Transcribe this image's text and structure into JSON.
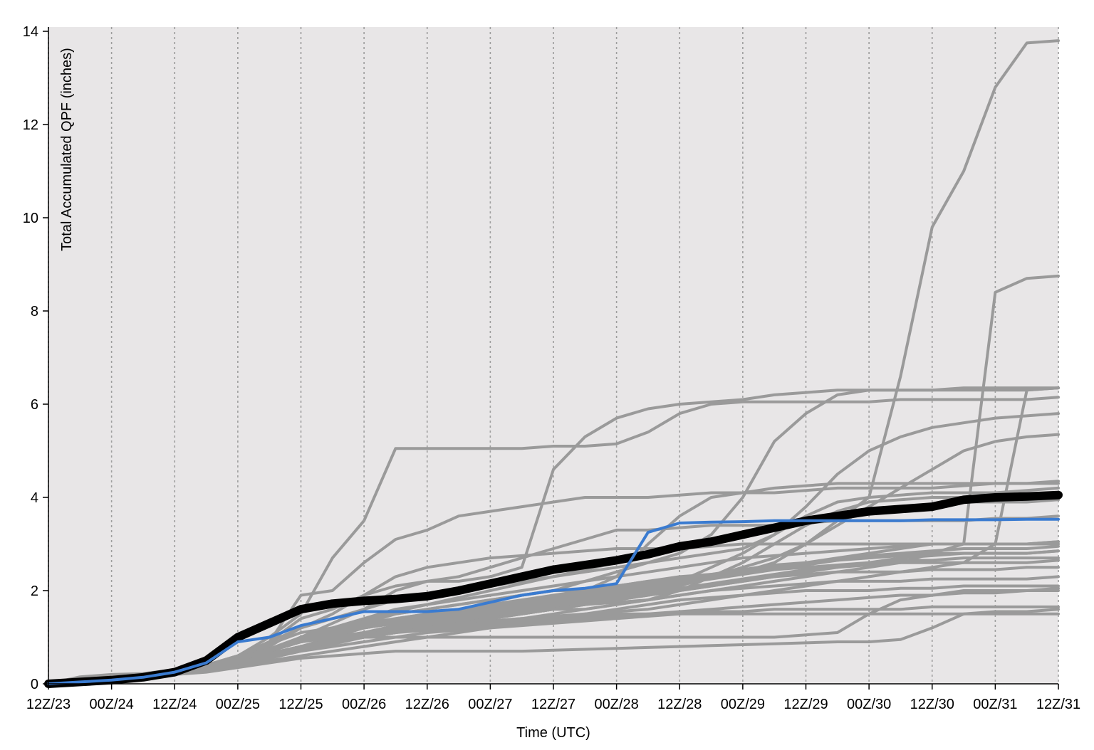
{
  "chart_data": {
    "type": "line",
    "xlabel": "Time (UTC)",
    "ylabel": "Total Accumulated QPF (inches)",
    "x_ticks": [
      "12Z/23",
      "00Z/24",
      "12Z/24",
      "00Z/25",
      "12Z/25",
      "00Z/26",
      "12Z/26",
      "00Z/27",
      "12Z/27",
      "00Z/28",
      "12Z/28",
      "00Z/29",
      "12Z/29",
      "00Z/30",
      "12Z/30",
      "00Z/31",
      "12Z/31"
    ],
    "x_units": "hours since first tick, 6-hourly steps",
    "y_ticks": [
      0,
      2,
      4,
      6,
      8,
      10,
      12,
      14
    ],
    "ylim": [
      0,
      14
    ],
    "xlim": [
      0,
      192
    ],
    "grid": "vertical dotted lines at each x tick",
    "background": "#e8e6e7",
    "member_color": "#9a9a9a",
    "mean_color": "#000000",
    "deterministic_color": "#3a7bd0",
    "x": [
      0,
      6,
      12,
      18,
      24,
      30,
      36,
      42,
      48,
      54,
      60,
      66,
      72,
      78,
      84,
      90,
      96,
      102,
      108,
      114,
      120,
      126,
      132,
      138,
      144,
      150,
      156,
      162,
      168,
      174,
      180,
      186,
      192
    ],
    "members": [
      [
        0,
        0.15,
        0.2,
        0.22,
        0.3,
        0.4,
        0.6,
        0.9,
        1.9,
        2.0,
        2.6,
        3.1,
        3.3,
        3.6,
        3.7,
        3.8,
        3.9,
        4.0,
        4.0,
        4.0,
        4.05,
        4.1,
        4.1,
        4.1,
        4.15,
        4.2,
        4.2,
        4.2,
        4.2,
        4.25,
        4.3,
        4.3,
        4.3
      ],
      [
        0,
        0.05,
        0.1,
        0.15,
        0.2,
        0.35,
        0.6,
        1.0,
        1.5,
        2.7,
        3.5,
        5.05,
        5.05,
        5.05,
        5.05,
        5.05,
        5.1,
        5.1,
        5.15,
        5.4,
        5.8,
        6.0,
        6.05,
        6.05,
        6.05,
        6.05,
        6.05,
        6.1,
        6.1,
        6.1,
        6.1,
        6.1,
        6.15
      ],
      [
        0,
        0.05,
        0.1,
        0.15,
        0.25,
        0.4,
        0.6,
        0.9,
        1.4,
        1.6,
        1.9,
        2.1,
        2.2,
        2.2,
        2.3,
        2.5,
        4.6,
        5.3,
        5.7,
        5.9,
        6.0,
        6.05,
        6.1,
        6.2,
        6.25,
        6.3,
        6.3,
        6.3,
        6.3,
        6.35,
        6.35,
        6.35,
        6.35
      ],
      [
        0,
        0.05,
        0.1,
        0.15,
        0.25,
        0.4,
        0.55,
        0.8,
        1.2,
        1.4,
        1.6,
        1.8,
        1.9,
        2.0,
        2.1,
        2.2,
        2.3,
        2.4,
        2.5,
        2.6,
        2.7,
        2.8,
        2.9,
        3.2,
        3.8,
        4.5,
        5.0,
        5.3,
        5.5,
        5.6,
        5.7,
        5.75,
        5.8
      ],
      [
        0,
        0.05,
        0.1,
        0.15,
        0.2,
        0.3,
        0.45,
        0.7,
        1.0,
        1.2,
        1.4,
        1.5,
        1.6,
        1.7,
        1.8,
        1.9,
        2.0,
        2.2,
        2.4,
        2.6,
        2.8,
        3.2,
        4.0,
        5.2,
        5.8,
        6.2,
        6.3,
        6.3,
        6.3,
        6.3,
        6.3,
        6.3,
        6.35
      ],
      [
        0,
        0.05,
        0.1,
        0.15,
        0.25,
        0.35,
        0.5,
        0.7,
        0.9,
        1.1,
        1.3,
        1.5,
        1.6,
        1.7,
        1.8,
        1.9,
        2.0,
        2.0,
        2.1,
        2.2,
        2.2,
        2.3,
        2.4,
        2.6,
        3.0,
        3.4,
        3.8,
        4.2,
        4.6,
        5.0,
        5.2,
        5.3,
        5.35
      ],
      [
        0,
        0.05,
        0.1,
        0.15,
        0.2,
        0.3,
        0.4,
        0.6,
        0.8,
        1.0,
        1.2,
        1.3,
        1.4,
        1.5,
        1.6,
        1.7,
        1.8,
        2.0,
        2.3,
        3.0,
        3.6,
        4.0,
        4.1,
        4.2,
        4.25,
        4.3,
        4.3,
        4.3,
        4.3,
        4.3,
        4.3,
        4.3,
        4.35
      ],
      [
        0,
        0.05,
        0.1,
        0.15,
        0.25,
        0.4,
        0.6,
        0.85,
        1.1,
        1.2,
        1.3,
        1.4,
        1.5,
        1.5,
        1.55,
        1.6,
        1.7,
        1.8,
        1.9,
        2.0,
        2.2,
        2.5,
        2.8,
        3.2,
        3.6,
        3.9,
        4.0,
        4.05,
        4.1,
        4.1,
        4.1,
        4.15,
        4.2
      ],
      [
        0,
        0.05,
        0.1,
        0.15,
        0.2,
        0.3,
        0.5,
        0.7,
        1.0,
        1.1,
        1.2,
        1.3,
        1.4,
        1.4,
        1.5,
        1.5,
        1.6,
        1.6,
        1.7,
        1.8,
        2.0,
        2.3,
        2.6,
        3.0,
        3.4,
        3.7,
        3.9,
        3.95,
        4.0,
        4.0,
        4.0,
        4.0,
        4.05
      ],
      [
        0,
        0.05,
        0.1,
        0.15,
        0.25,
        0.35,
        0.5,
        0.65,
        0.8,
        0.95,
        1.05,
        1.15,
        1.2,
        1.3,
        1.35,
        1.4,
        1.45,
        1.5,
        1.55,
        1.6,
        1.7,
        1.8,
        1.9,
        2.0,
        2.1,
        2.2,
        2.3,
        2.4,
        2.5,
        2.6,
        3.0,
        6.3,
        6.35
      ],
      [
        0,
        0.05,
        0.1,
        0.15,
        0.25,
        0.35,
        0.5,
        0.7,
        0.9,
        1.0,
        1.1,
        1.2,
        1.25,
        1.3,
        1.35,
        1.4,
        1.5,
        1.6,
        1.7,
        1.8,
        1.9,
        2.0,
        2.1,
        2.2,
        2.3,
        2.4,
        2.5,
        2.6,
        2.8,
        3.0,
        8.4,
        8.7,
        8.75
      ],
      [
        0,
        0.05,
        0.1,
        0.15,
        0.25,
        0.35,
        0.5,
        0.7,
        0.9,
        1.0,
        1.1,
        1.2,
        1.3,
        1.4,
        1.5,
        1.6,
        1.7,
        1.8,
        1.9,
        2.0,
        2.1,
        2.3,
        2.5,
        2.7,
        3.0,
        3.5,
        4.0,
        6.6,
        9.8,
        11.0,
        12.8,
        13.75,
        13.8
      ],
      [
        0,
        0.05,
        0.1,
        0.15,
        0.25,
        0.4,
        0.55,
        0.75,
        0.95,
        1.1,
        1.2,
        1.3,
        1.4,
        1.5,
        1.6,
        1.7,
        1.8,
        1.9,
        2.0,
        2.1,
        2.2,
        2.3,
        2.4,
        2.5,
        2.6,
        2.7,
        2.8,
        2.9,
        3.0,
        3.0,
        3.0,
        3.0,
        3.05
      ],
      [
        0,
        0.05,
        0.1,
        0.15,
        0.2,
        0.3,
        0.45,
        0.6,
        0.8,
        0.9,
        1.0,
        1.1,
        1.2,
        1.3,
        1.4,
        1.5,
        1.6,
        1.7,
        1.8,
        1.9,
        2.0,
        2.1,
        2.2,
        2.3,
        2.4,
        2.5,
        2.6,
        2.7,
        2.75,
        2.8,
        2.8,
        2.8,
        2.85
      ],
      [
        0,
        0.05,
        0.1,
        0.15,
        0.25,
        0.35,
        0.5,
        0.65,
        0.8,
        0.95,
        1.05,
        1.15,
        1.25,
        1.35,
        1.45,
        1.55,
        1.65,
        1.75,
        1.85,
        1.95,
        2.05,
        2.15,
        2.25,
        2.35,
        2.45,
        2.5,
        2.55,
        2.6,
        2.6,
        2.6,
        2.6,
        2.6,
        2.65
      ],
      [
        0,
        0.05,
        0.1,
        0.15,
        0.2,
        0.3,
        0.4,
        0.55,
        0.7,
        0.85,
        1.0,
        1.1,
        1.2,
        1.3,
        1.4,
        1.5,
        1.6,
        1.7,
        1.8,
        1.9,
        2.0,
        2.1,
        2.2,
        2.3,
        2.35,
        2.4,
        2.4,
        2.4,
        2.45,
        2.45,
        2.45,
        2.5,
        2.5
      ],
      [
        0,
        0.05,
        0.1,
        0.15,
        0.25,
        0.35,
        0.45,
        0.6,
        0.75,
        0.9,
        1.0,
        1.1,
        1.2,
        1.3,
        1.4,
        1.5,
        1.6,
        1.7,
        1.75,
        1.8,
        1.9,
        2.0,
        2.05,
        2.1,
        2.15,
        2.2,
        2.2,
        2.2,
        2.25,
        2.25,
        2.25,
        2.25,
        2.3
      ],
      [
        0,
        0.05,
        0.1,
        0.15,
        0.2,
        0.3,
        0.4,
        0.5,
        0.6,
        0.7,
        0.8,
        0.9,
        1.0,
        1.1,
        1.2,
        1.3,
        1.4,
        1.5,
        1.6,
        1.7,
        1.8,
        1.85,
        1.9,
        1.95,
        2.0,
        2.0,
        2.0,
        2.05,
        2.05,
        2.1,
        2.1,
        2.1,
        2.1
      ],
      [
        0,
        0.05,
        0.1,
        0.15,
        0.25,
        0.35,
        0.5,
        0.65,
        0.8,
        0.9,
        1.0,
        1.1,
        1.15,
        1.2,
        1.25,
        1.3,
        1.35,
        1.4,
        1.45,
        1.5,
        1.55,
        1.6,
        1.65,
        1.7,
        1.75,
        1.8,
        1.85,
        1.9,
        1.9,
        1.95,
        1.95,
        2.0,
        2.0
      ],
      [
        0,
        0.05,
        0.1,
        0.15,
        0.2,
        0.3,
        0.4,
        0.55,
        0.7,
        0.8,
        0.9,
        1.0,
        1.1,
        1.15,
        1.2,
        1.25,
        1.3,
        1.35,
        1.4,
        1.45,
        1.5,
        1.55,
        1.55,
        1.6,
        1.6,
        1.6,
        1.6,
        1.6,
        1.65,
        1.65,
        1.65,
        1.65,
        1.65
      ],
      [
        0,
        0.05,
        0.1,
        0.15,
        0.2,
        0.25,
        0.35,
        0.45,
        0.55,
        0.6,
        0.65,
        0.7,
        0.7,
        0.7,
        0.7,
        0.7,
        0.72,
        0.74,
        0.76,
        0.78,
        0.8,
        0.82,
        0.84,
        0.86,
        0.88,
        0.9,
        0.9,
        0.95,
        1.2,
        1.5,
        1.55,
        1.55,
        1.6
      ],
      [
        0,
        0.05,
        0.1,
        0.15,
        0.25,
        0.35,
        0.5,
        0.65,
        0.8,
        0.9,
        1.0,
        1.0,
        1.0,
        1.0,
        1.0,
        1.0,
        1.0,
        1.0,
        1.0,
        1.0,
        1.0,
        1.0,
        1.0,
        1.0,
        1.05,
        1.1,
        1.5,
        1.8,
        1.9,
        2.0,
        2.0,
        2.0,
        2.05
      ],
      [
        0,
        0.05,
        0.1,
        0.15,
        0.2,
        0.3,
        0.45,
        0.6,
        0.75,
        0.9,
        1.0,
        1.1,
        1.2,
        1.25,
        1.3,
        1.35,
        1.4,
        1.45,
        1.5,
        1.5,
        1.5,
        1.5,
        1.5,
        1.5,
        1.5,
        1.5,
        1.5,
        1.5,
        1.5,
        1.5,
        1.5,
        1.5,
        1.5
      ],
      [
        0,
        0.05,
        0.1,
        0.15,
        0.25,
        0.35,
        0.5,
        0.7,
        1.0,
        1.3,
        1.6,
        2.0,
        2.2,
        2.3,
        2.5,
        2.7,
        2.9,
        3.1,
        3.3,
        3.3,
        3.35,
        3.4,
        3.4,
        3.4,
        3.45,
        3.5,
        3.5,
        3.5,
        3.5,
        3.5,
        3.55,
        3.55,
        3.6
      ],
      [
        0,
        0.05,
        0.1,
        0.15,
        0.25,
        0.35,
        0.55,
        0.75,
        1.0,
        1.2,
        1.4,
        1.6,
        1.7,
        1.8,
        1.9,
        2.0,
        2.1,
        2.2,
        2.3,
        2.4,
        2.5,
        2.6,
        2.7,
        2.75,
        2.8,
        2.85,
        2.9,
        2.95,
        3.0,
        3.0,
        3.0,
        3.0,
        3.0
      ],
      [
        0,
        0.05,
        0.1,
        0.15,
        0.25,
        0.4,
        0.6,
        0.9,
        1.2,
        1.5,
        1.9,
        2.3,
        2.5,
        2.6,
        2.7,
        2.75,
        2.8,
        2.85,
        2.9,
        2.9,
        2.9,
        2.95,
        3.0,
        3.0,
        3.0,
        3.0,
        3.0,
        3.0,
        3.0,
        3.0,
        3.0,
        3.0,
        3.05
      ],
      [
        0,
        0.05,
        0.1,
        0.15,
        0.25,
        0.35,
        0.5,
        0.7,
        0.9,
        1.05,
        1.2,
        1.35,
        1.45,
        1.55,
        1.65,
        1.75,
        1.85,
        1.95,
        2.05,
        2.15,
        2.25,
        2.35,
        2.45,
        2.55,
        2.6,
        2.65,
        2.7,
        2.75,
        2.8,
        2.8,
        2.8,
        2.8,
        2.85
      ],
      [
        0,
        0.05,
        0.1,
        0.15,
        0.25,
        0.4,
        0.55,
        0.75,
        0.95,
        1.1,
        1.25,
        1.4,
        1.5,
        1.6,
        1.7,
        1.8,
        1.9,
        2.0,
        2.1,
        2.2,
        2.3,
        2.35,
        2.4,
        2.45,
        2.5,
        2.55,
        2.6,
        2.65,
        2.65,
        2.7,
        2.7,
        2.7,
        2.7
      ],
      [
        0,
        0.05,
        0.1,
        0.15,
        0.25,
        0.35,
        0.5,
        0.7,
        0.95,
        1.15,
        1.35,
        1.55,
        1.7,
        1.85,
        2.0,
        2.15,
        2.3,
        2.45,
        2.6,
        2.75,
        2.9,
        3.05,
        3.2,
        3.35,
        3.5,
        3.6,
        3.7,
        3.8,
        3.85,
        3.9,
        3.9,
        3.9,
        3.95
      ],
      [
        0,
        0.05,
        0.1,
        0.15,
        0.2,
        0.3,
        0.45,
        0.6,
        0.8,
        0.95,
        1.1,
        1.25,
        1.35,
        1.45,
        1.55,
        1.65,
        1.75,
        1.85,
        1.95,
        2.05,
        2.15,
        2.25,
        2.35,
        2.45,
        2.55,
        2.65,
        2.75,
        2.8,
        2.85,
        2.9,
        2.9,
        2.9,
        2.95
      ]
    ],
    "series": [
      {
        "name": "",
        "values": [
          0,
          0.04,
          0.08,
          0.14,
          0.25,
          0.5,
          1.0,
          1.3,
          1.6,
          1.72,
          1.78,
          1.82,
          1.88,
          2.0,
          2.15,
          2.3,
          2.45,
          2.55,
          2.65,
          2.78,
          2.95,
          3.05,
          3.2,
          3.35,
          3.5,
          3.6,
          3.7,
          3.75,
          3.8,
          3.95,
          4.0,
          4.02,
          4.05
        ]
      },
      {
        "name": "",
        "values": [
          0,
          0.04,
          0.08,
          0.14,
          0.25,
          0.45,
          0.9,
          1.0,
          1.25,
          1.4,
          1.55,
          1.55,
          1.55,
          1.6,
          1.75,
          1.9,
          2.0,
          2.05,
          2.15,
          3.25,
          3.45,
          3.47,
          3.48,
          3.5,
          3.5,
          3.5,
          3.5,
          3.5,
          3.52,
          3.52,
          3.52,
          3.53,
          3.53
        ]
      }
    ]
  }
}
